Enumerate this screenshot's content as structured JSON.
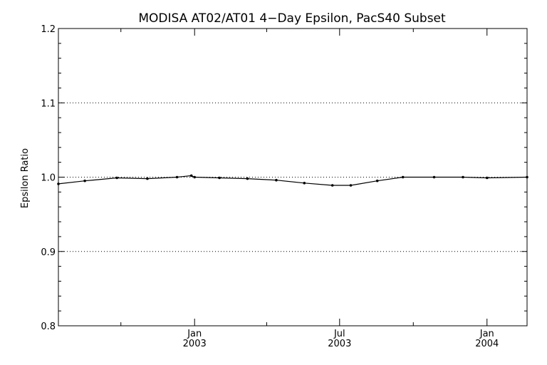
{
  "chart_data": {
    "type": "line",
    "title": "MODISA AT02/AT01 4−Day Epsilon, PacS40 Subset",
    "xlabel": "",
    "ylabel": "Epsilon Ratio",
    "xlim": [
      "2002-07-15",
      "2004-02-20"
    ],
    "ylim": [
      0.8,
      1.2
    ],
    "y_ticks": [
      0.8,
      0.9,
      1.0,
      1.1,
      1.2
    ],
    "y_tick_labels": [
      "0.8",
      "0.9",
      "1.0",
      "1.1",
      "1.2"
    ],
    "x_major_ticks": [
      {
        "date": "2003-01-01",
        "month": "Jan",
        "year": "2003"
      },
      {
        "date": "2003-07-01",
        "month": "Jul",
        "year": "2003"
      },
      {
        "date": "2004-01-01",
        "month": "Jan",
        "year": "2004"
      }
    ],
    "x_minor_ticks": [
      "2002-10-01",
      "2003-04-01",
      "2003-10-01"
    ],
    "grid": true,
    "grid_lines_y": [
      0.9,
      1.0,
      1.1
    ],
    "series": [
      {
        "x": [
          "2002-07-15",
          "2002-08-17",
          "2002-09-26",
          "2002-11-03",
          "2002-12-10",
          "2002-12-28",
          "2003-01-01",
          "2003-02-01",
          "2003-03-08",
          "2003-04-13",
          "2003-05-18",
          "2003-06-22",
          "2003-07-15",
          "2003-08-17",
          "2003-09-18",
          "2003-10-27",
          "2003-12-02",
          "2004-01-01",
          "2004-02-20"
        ],
        "y": [
          0.991,
          0.995,
          0.999,
          0.998,
          1.0,
          1.002,
          1.0,
          0.999,
          0.998,
          0.996,
          0.992,
          0.989,
          0.989,
          0.995,
          1.0,
          1.0,
          1.0,
          0.999,
          1.0
        ]
      }
    ]
  }
}
